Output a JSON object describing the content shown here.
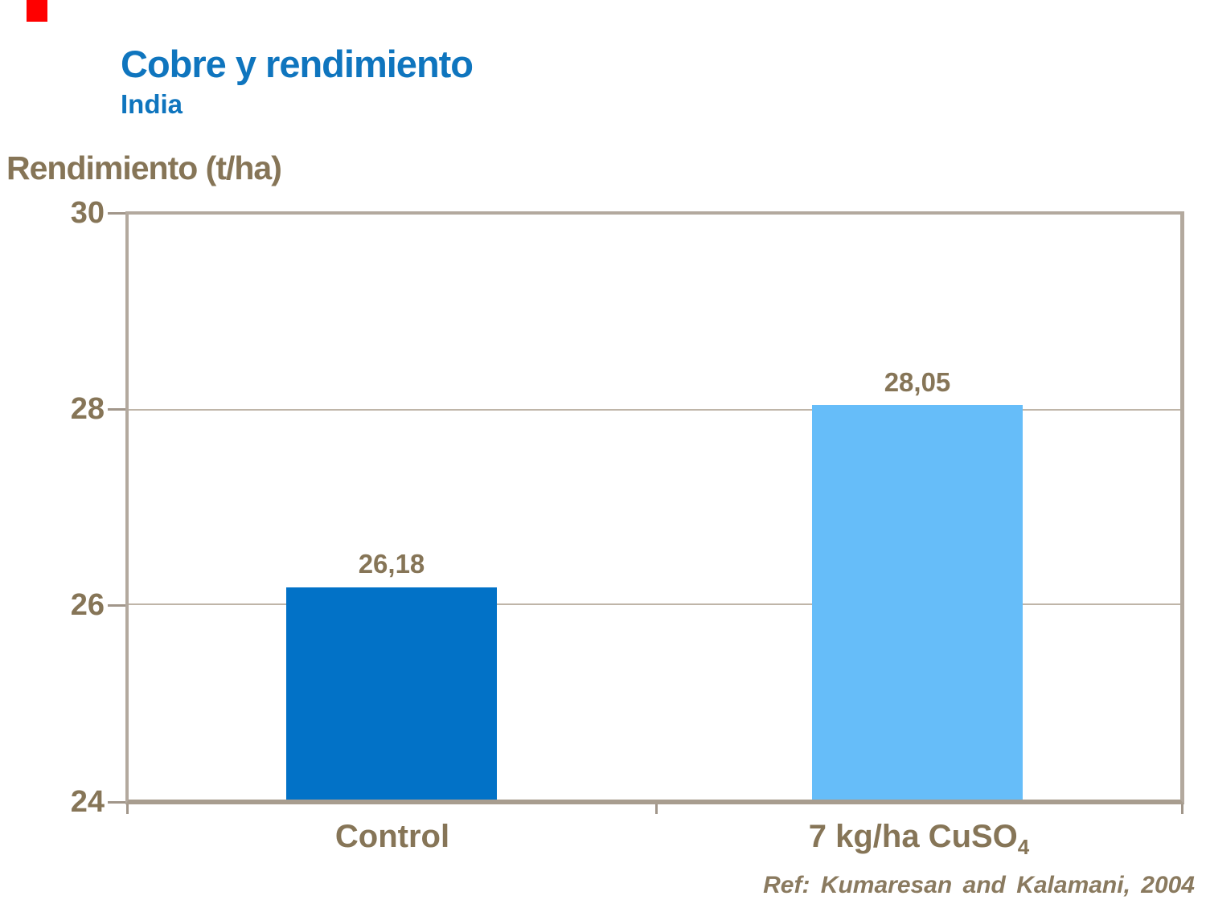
{
  "slide": {
    "title": "Cobre y rendimiento",
    "subtitle": "India",
    "axis_title": "Rendimiento (t/ha)",
    "reference": "Ref: Kumaresan and Kalamani, 2004",
    "accent_mark_color": "#ff0000"
  },
  "colors": {
    "title_blue": "#0F75BE",
    "text_brown": "#867557",
    "frame_tan": "#B3A99E",
    "axis_dark_tan": "#A1968A",
    "gridline_tan": "#BFB5A8",
    "bar_control_blue": "#0272C7",
    "bar_treated_lightblue": "#66BDF9"
  },
  "chart_data": {
    "type": "bar",
    "title": "Cobre y rendimiento",
    "subtitle": "India",
    "ylabel": "Rendimiento (t/ha)",
    "xlabel": "",
    "categories": [
      "Control",
      "7 kg/ha CuSO₄"
    ],
    "values": [
      26.18,
      28.05
    ],
    "value_labels": [
      "26,18",
      "28,05"
    ],
    "series_colors": [
      "#0272C7",
      "#66BDF9"
    ],
    "ylim": [
      24,
      30
    ],
    "yticks": [
      30,
      28,
      26,
      24
    ],
    "gridlines": [
      28,
      26
    ],
    "grid": "horizontal only",
    "legend_position": "none",
    "annotation": "Ref: Kumaresan and Kalamani, 2004",
    "xlabels": [
      {
        "text": "Control",
        "sub": ""
      },
      {
        "text": "7 kg/ha CuSO",
        "sub": "4"
      }
    ]
  }
}
